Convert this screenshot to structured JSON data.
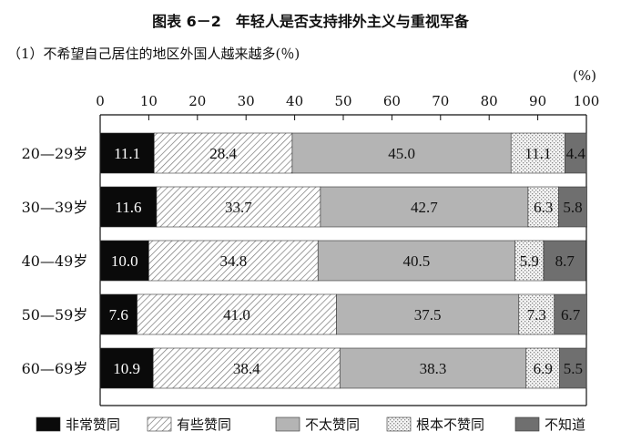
{
  "header": {
    "title": "图表 6－2　年轻人是否支持排外主义与重视军备",
    "subtitle": "（1）不希望自己居住的地区外国人越来越多(％)"
  },
  "chart_data": {
    "type": "bar",
    "orientation": "horizontal",
    "stacked": true,
    "unit_label": "(%)",
    "xlim": [
      0,
      100
    ],
    "xticks": [
      "0",
      "10",
      "20",
      "30",
      "40",
      "50",
      "60",
      "70",
      "80",
      "90",
      "100"
    ],
    "categories": [
      "20—29岁",
      "30—39岁",
      "40—49岁",
      "50—59岁",
      "60—69岁"
    ],
    "series": [
      {
        "name": "非常赞同",
        "color": "#0a0a0a",
        "pattern": "solid",
        "values": [
          11.1,
          11.6,
          10.0,
          7.6,
          10.9
        ]
      },
      {
        "name": "有些赞同",
        "color": "#ffffff",
        "pattern": "hatch",
        "values": [
          28.4,
          33.7,
          34.8,
          41.0,
          38.4
        ]
      },
      {
        "name": "不太赞同",
        "color": "#b4b4b4",
        "pattern": "solid",
        "values": [
          45.0,
          42.7,
          40.5,
          37.5,
          38.3
        ]
      },
      {
        "name": "根本不赞同",
        "color": "#ececec",
        "pattern": "dots",
        "values": [
          11.1,
          6.3,
          5.9,
          7.3,
          6.9
        ]
      },
      {
        "name": "不知道",
        "color": "#6f6f6f",
        "pattern": "solid",
        "values": [
          4.4,
          5.8,
          8.7,
          6.7,
          5.5
        ]
      }
    ],
    "legend_position": "bottom"
  }
}
